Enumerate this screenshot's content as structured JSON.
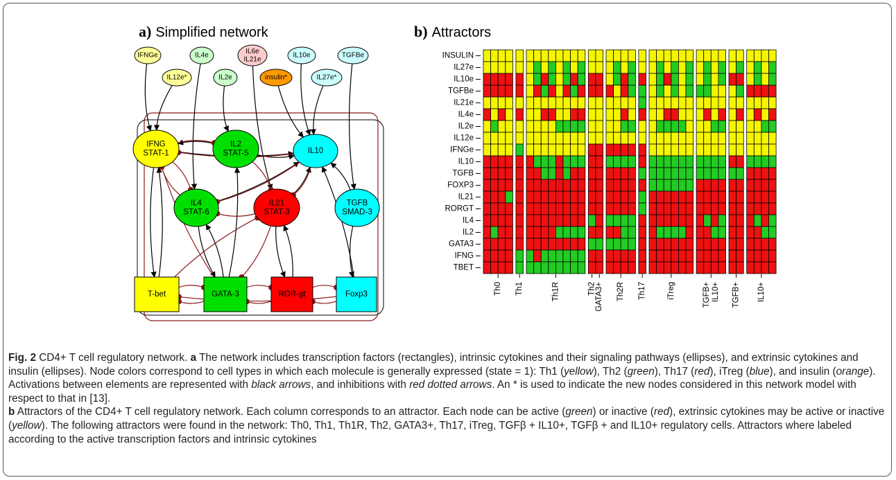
{
  "network": {
    "title_letter": "a)",
    "title": "Simplified network",
    "nodes": [
      {
        "lines": [
          "IFNGe"
        ],
        "color": "#ffff99",
        "shape": "ellipse"
      },
      {
        "lines": [
          "IL4e"
        ],
        "color": "#ccffcc",
        "shape": "ellipse"
      },
      {
        "lines": [
          "IL6e",
          "IL21e"
        ],
        "color": "#ffcccc",
        "shape": "ellipse"
      },
      {
        "lines": [
          "IL10e"
        ],
        "color": "#ccffff",
        "shape": "ellipse"
      },
      {
        "lines": [
          "TGFBe"
        ],
        "color": "#ccffff",
        "shape": "ellipse"
      },
      {
        "lines": [
          "IL12e*"
        ],
        "color": "#ffff99",
        "shape": "ellipse"
      },
      {
        "lines": [
          "IL2e"
        ],
        "color": "#ccffcc",
        "shape": "ellipse"
      },
      {
        "lines": [
          "insulin*"
        ],
        "color": "#ff9900",
        "shape": "ellipse"
      },
      {
        "lines": [
          "IL27e*"
        ],
        "color": "#ccffff",
        "shape": "ellipse"
      },
      {
        "lines": [
          "IFNG",
          "STAT-1"
        ],
        "color": "#ffff00",
        "shape": "ellipse"
      },
      {
        "lines": [
          "IL2",
          "STAT-5"
        ],
        "color": "#00e000",
        "shape": "ellipse"
      },
      {
        "lines": [
          "IL10"
        ],
        "color": "#00ffff",
        "shape": "ellipse"
      },
      {
        "lines": [
          "IL4",
          "STAT-6"
        ],
        "color": "#00e000",
        "shape": "ellipse"
      },
      {
        "lines": [
          "IL21",
          "STAT-3"
        ],
        "color": "#ff0000",
        "shape": "ellipse"
      },
      {
        "lines": [
          "TGFB",
          "SMAD-3"
        ],
        "color": "#00ffff",
        "shape": "ellipse"
      },
      {
        "lines": [
          "T-bet"
        ],
        "color": "#ffff00",
        "shape": "rect"
      },
      {
        "lines": [
          "GATA-3"
        ],
        "color": "#00e000",
        "shape": "rect"
      },
      {
        "lines": [
          "ROR-gt"
        ],
        "color": "#ff0000",
        "shape": "rect"
      },
      {
        "lines": [
          "Foxp3"
        ],
        "color": "#00ffff",
        "shape": "rect"
      }
    ],
    "activation_color": "#000000",
    "inhibition_color": "#8b1a1a"
  },
  "heatmap": {
    "type": "heatmap",
    "title_letter": "b)",
    "title": "Attractors",
    "rows": [
      "INSULIN",
      "IL27e",
      "IL10e",
      "TGFBe",
      "IL21e",
      "IL4e",
      "IL2e",
      "IL12e",
      "IFNGe",
      "IL10",
      "TGFB",
      "FOXP3",
      "IL21",
      "RORGT",
      "IL4",
      "IL2",
      "GATA3",
      "IFNG",
      "TBET"
    ],
    "groups": [
      {
        "lines": [
          "Th0"
        ],
        "span": 4
      },
      {
        "lines": [
          "Th1"
        ],
        "span": 1
      },
      {
        "lines": [
          "Th1R"
        ],
        "span": 8
      },
      {
        "lines": [
          "Th2"
        ],
        "span": 1
      },
      {
        "lines": [
          "GATA3+"
        ],
        "span": 1
      },
      {
        "lines": [
          "Th2R"
        ],
        "span": 4
      },
      {
        "lines": [
          "Th17"
        ],
        "span": 1
      },
      {
        "lines": [
          "iTreg"
        ],
        "span": 6
      },
      {
        "lines": [
          "TGFB+",
          "IL10+"
        ],
        "span": 4
      },
      {
        "lines": [
          "TGFB+"
        ],
        "span": 2
      },
      {
        "lines": [
          "IL10+"
        ],
        "span": 4
      }
    ],
    "gap_after_groups": [
      0,
      1,
      2,
      4,
      5,
      6,
      7,
      8,
      9
    ],
    "colors": {
      "0": "#ee1111",
      "1": "#22cc22"
    },
    "null_color": "#f5f500",
    "values": [
      [
        null,
        null,
        null,
        null,
        null,
        null,
        null,
        null,
        null,
        null,
        null,
        null,
        null,
        null,
        null,
        null,
        null,
        null,
        null,
        null,
        null,
        null,
        null,
        null,
        null,
        null,
        null,
        null,
        null,
        null,
        null,
        null,
        null,
        null,
        null,
        null
      ],
      [
        null,
        null,
        null,
        null,
        null,
        null,
        1,
        null,
        1,
        null,
        1,
        null,
        1,
        null,
        null,
        null,
        1,
        null,
        1,
        null,
        null,
        1,
        null,
        1,
        null,
        1,
        null,
        1,
        null,
        1,
        null,
        1,
        null,
        1,
        null,
        1
      ],
      [
        0,
        0,
        0,
        0,
        0,
        null,
        1,
        0,
        1,
        null,
        1,
        0,
        1,
        0,
        0,
        null,
        1,
        0,
        1,
        0,
        null,
        1,
        0,
        1,
        null,
        1,
        null,
        1,
        null,
        1,
        0,
        0,
        null,
        1,
        null,
        1
      ],
      [
        0,
        0,
        0,
        0,
        0,
        null,
        0,
        1,
        0,
        null,
        0,
        1,
        0,
        0,
        0,
        0,
        null,
        0,
        1,
        1,
        null,
        1,
        null,
        1,
        null,
        1,
        1,
        1,
        null,
        null,
        null,
        1,
        0,
        0,
        0,
        0
      ],
      [
        null,
        null,
        null,
        null,
        null,
        null,
        null,
        null,
        null,
        null,
        null,
        null,
        null,
        null,
        null,
        null,
        null,
        null,
        null,
        1,
        null,
        null,
        null,
        null,
        null,
        null,
        null,
        null,
        null,
        null,
        null,
        null,
        null,
        null,
        null,
        null
      ],
      [
        0,
        null,
        0,
        null,
        0,
        null,
        null,
        0,
        0,
        null,
        null,
        0,
        0,
        null,
        null,
        null,
        null,
        0,
        null,
        0,
        null,
        null,
        0,
        0,
        null,
        null,
        null,
        0,
        null,
        0,
        null,
        0,
        null,
        0,
        null,
        0
      ],
      [
        null,
        1,
        null,
        null,
        null,
        null,
        null,
        null,
        null,
        1,
        1,
        1,
        1,
        null,
        null,
        null,
        null,
        1,
        1,
        null,
        null,
        1,
        1,
        1,
        1,
        null,
        null,
        null,
        1,
        1,
        null,
        null,
        null,
        null,
        1,
        1
      ],
      [
        null,
        null,
        null,
        null,
        null,
        null,
        null,
        null,
        null,
        null,
        null,
        null,
        null,
        null,
        null,
        null,
        null,
        null,
        null,
        null,
        null,
        null,
        null,
        null,
        null,
        null,
        null,
        null,
        null,
        null,
        null,
        null,
        null,
        null,
        null,
        null
      ],
      [
        null,
        null,
        null,
        null,
        1,
        null,
        null,
        null,
        null,
        null,
        null,
        null,
        null,
        0,
        0,
        0,
        0,
        0,
        0,
        0,
        null,
        null,
        null,
        null,
        null,
        null,
        null,
        null,
        null,
        null,
        null,
        null,
        null,
        null,
        null,
        null
      ],
      [
        0,
        0,
        0,
        0,
        0,
        0,
        1,
        1,
        1,
        0,
        1,
        1,
        1,
        0,
        0,
        1,
        1,
        1,
        1,
        0,
        1,
        1,
        1,
        1,
        1,
        1,
        1,
        1,
        1,
        1,
        0,
        0,
        1,
        1,
        1,
        1
      ],
      [
        0,
        0,
        0,
        0,
        0,
        0,
        0,
        1,
        1,
        0,
        1,
        0,
        0,
        0,
        0,
        0,
        0,
        0,
        0,
        1,
        1,
        1,
        1,
        1,
        1,
        1,
        1,
        1,
        1,
        1,
        1,
        1,
        0,
        0,
        0,
        0
      ],
      [
        0,
        0,
        0,
        0,
        0,
        0,
        0,
        0,
        0,
        0,
        0,
        0,
        0,
        0,
        0,
        0,
        0,
        0,
        0,
        0,
        1,
        1,
        1,
        1,
        1,
        1,
        0,
        0,
        0,
        0,
        0,
        0,
        0,
        0,
        0,
        0
      ],
      [
        0,
        0,
        0,
        1,
        0,
        0,
        0,
        0,
        0,
        0,
        0,
        0,
        0,
        0,
        0,
        0,
        0,
        0,
        0,
        1,
        0,
        0,
        0,
        0,
        0,
        0,
        0,
        0,
        0,
        0,
        0,
        0,
        0,
        0,
        0,
        0
      ],
      [
        0,
        0,
        0,
        0,
        0,
        0,
        0,
        0,
        0,
        0,
        0,
        0,
        0,
        0,
        0,
        0,
        0,
        0,
        0,
        1,
        0,
        0,
        0,
        0,
        0,
        0,
        0,
        0,
        0,
        0,
        0,
        0,
        0,
        0,
        0,
        0
      ],
      [
        0,
        0,
        0,
        0,
        0,
        0,
        0,
        0,
        0,
        0,
        0,
        0,
        0,
        1,
        0,
        1,
        1,
        1,
        1,
        0,
        0,
        0,
        0,
        0,
        0,
        0,
        0,
        1,
        0,
        1,
        0,
        0,
        0,
        1,
        0,
        1
      ],
      [
        0,
        1,
        0,
        0,
        0,
        0,
        0,
        0,
        0,
        1,
        1,
        1,
        1,
        0,
        0,
        0,
        0,
        1,
        1,
        0,
        0,
        1,
        1,
        1,
        1,
        0,
        0,
        0,
        1,
        1,
        0,
        0,
        0,
        0,
        1,
        1
      ],
      [
        0,
        0,
        0,
        0,
        0,
        0,
        0,
        0,
        0,
        0,
        0,
        0,
        0,
        1,
        1,
        1,
        1,
        1,
        1,
        0,
        0,
        0,
        0,
        0,
        0,
        0,
        0,
        0,
        0,
        0,
        0,
        0,
        0,
        0,
        0,
        0
      ],
      [
        0,
        0,
        0,
        0,
        1,
        1,
        0,
        1,
        1,
        1,
        1,
        1,
        1,
        0,
        0,
        0,
        0,
        0,
        0,
        0,
        0,
        0,
        0,
        0,
        0,
        0,
        0,
        0,
        0,
        0,
        0,
        0,
        0,
        0,
        0,
        0
      ],
      [
        0,
        0,
        0,
        0,
        1,
        1,
        1,
        1,
        1,
        1,
        1,
        1,
        1,
        0,
        0,
        0,
        0,
        0,
        0,
        0,
        0,
        0,
        0,
        0,
        0,
        0,
        0,
        0,
        0,
        0,
        0,
        0,
        0,
        0,
        0,
        0
      ]
    ]
  },
  "caption": {
    "segments": [
      "Fig. 2",
      " CD4+ T cell regulatory network. ",
      "a",
      " The network includes transcription factors (rectangles), intrinsic cytokines and their signaling pathways (ellipses), and extrinsic cytokines and insulin (ellipses). Node colors correspond to cell types in which each molecule is generally expressed (state = 1): Th1 (",
      "yellow",
      "), Th2 (",
      "green",
      "), Th17 (",
      "red",
      "), iTreg (",
      "blue",
      "), and insulin (",
      "orange",
      "). Activations between elements are represented with ",
      "black arrows",
      ", and inhibitions with ",
      "red dotted arrows",
      ". An * is used to indicate the new nodes considered in this network model with respect to that in [13].",
      "b",
      " Attractors of the CD4+ T cell regulatory network. Each column corresponds to an attractor. Each node can be active (",
      "green",
      ") or inactive (",
      "red",
      "), extrinsic cytokines may be active or inactive (",
      "yellow",
      "). The following attractors were found in the network: Th0, Th1, Th1R, Th2, GATA3+, Th17, iTreg, TGFβ + IL10+, TGFβ + and IL10+ regulatory cells. Attractors where labeled according to the active transcription factors and intrinsic cytokines"
    ]
  }
}
